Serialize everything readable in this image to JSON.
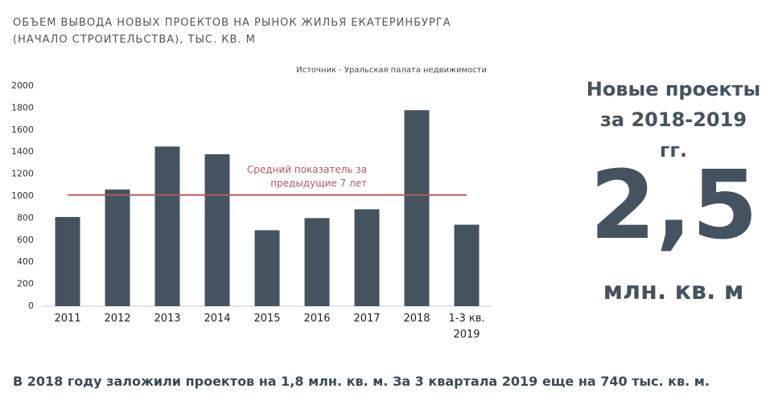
{
  "chart_data": {
    "type": "bar",
    "title": "ОБЪЕМ ВЫВОДА НОВЫХ ПРОЕКТОВ НА РЫНОК ЖИЛЬЯ ЕКАТЕРИНБУРГА (НАЧАЛО СТРОИТЕЛЬСТВА), ТЫС. КВ. М",
    "source": "Источник - Уральская палата недвижимости",
    "categories": [
      "2011",
      "2012",
      "2013",
      "2014",
      "2015",
      "2016",
      "2017",
      "2018",
      "1-3 кв. 2019"
    ],
    "values": [
      810,
      1060,
      1450,
      1380,
      690,
      800,
      880,
      1780,
      740
    ],
    "color": "#44535f",
    "ylim": [
      0,
      2000
    ],
    "yticks": [
      0,
      200,
      400,
      600,
      800,
      1000,
      1200,
      1400,
      1600,
      1800,
      2000
    ],
    "grid": false,
    "reference_line": {
      "value": 1010,
      "label": "Средний показатель за предыдущие 7  лет",
      "color": "#b05a5a"
    }
  },
  "callout": {
    "heading": "Новые проекты за 2018-2019 гг.",
    "value": "2,5",
    "unit": "млн. кв. м"
  },
  "footer": "В 2018 году заложили проектов на 1,8 млн. кв. м. За 3 квартала 2019 еще на 740 тыс. кв. м."
}
